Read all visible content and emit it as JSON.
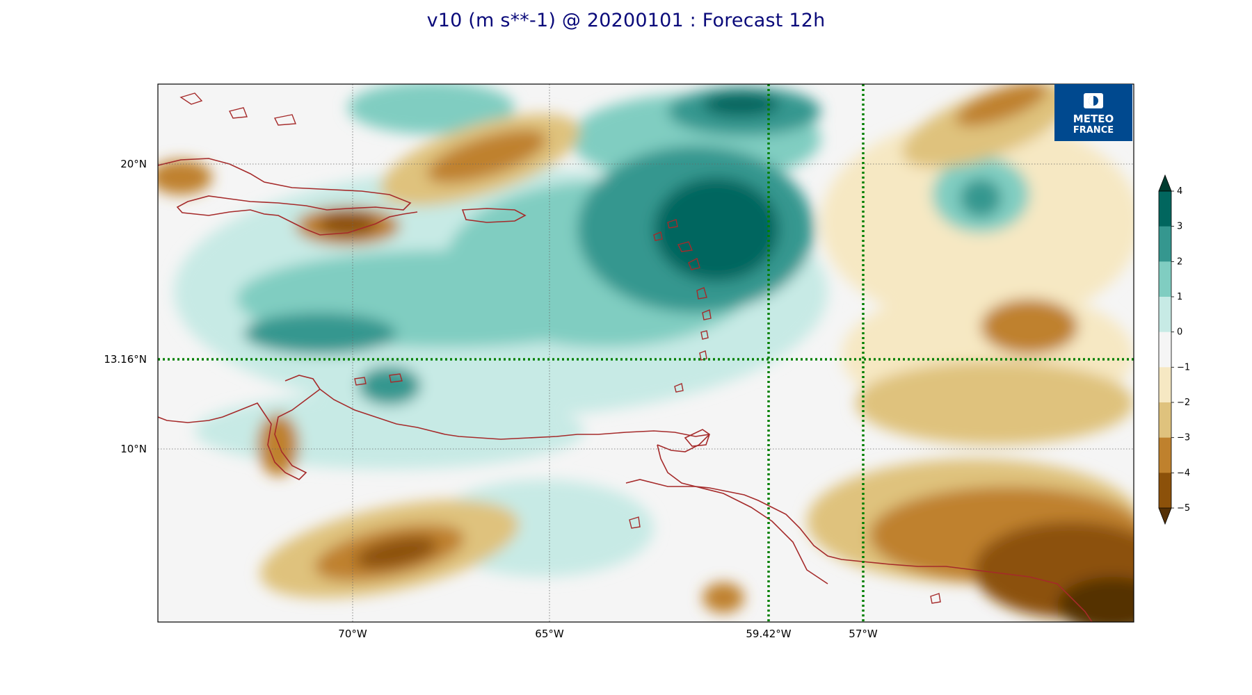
{
  "map": {
    "title": "v10 (m s**-1) @ 20200101 : Forecast 12h",
    "x_ticks": [
      {
        "label": "70°W",
        "lon": -70
      },
      {
        "label": "65°W",
        "lon": -65
      },
      {
        "label": "59.42°W",
        "lon": -59.42
      },
      {
        "label": "57°W",
        "lon": -57
      }
    ],
    "y_ticks": [
      {
        "label": "20°N",
        "lat": 20
      },
      {
        "label": "13.16°N",
        "lat": 13.16
      },
      {
        "label": "10°N",
        "lat": 10
      }
    ],
    "highlight_lons": [
      -59.42,
      -57
    ],
    "highlight_lat": 13.16,
    "logo_lines": [
      "METEO",
      "FRANCE"
    ],
    "colorbar": {
      "labels": [
        "4",
        "3",
        "2",
        "1",
        "0",
        "−1",
        "−2",
        "−3",
        "−4",
        "−5"
      ],
      "colors": [
        "#01665e",
        "#35978f",
        "#80cdc1",
        "#c7eae5",
        "#f5f5f5",
        "#f6e8c3",
        "#dfc27d",
        "#bf812d",
        "#8c510a"
      ],
      "over_color": "#003c30",
      "under_color": "#543005"
    },
    "colors": {
      "title": "#0a0a7a",
      "coastline": "#a52a2a",
      "highlight": "#008000",
      "logo_bg": "#00498f"
    }
  }
}
